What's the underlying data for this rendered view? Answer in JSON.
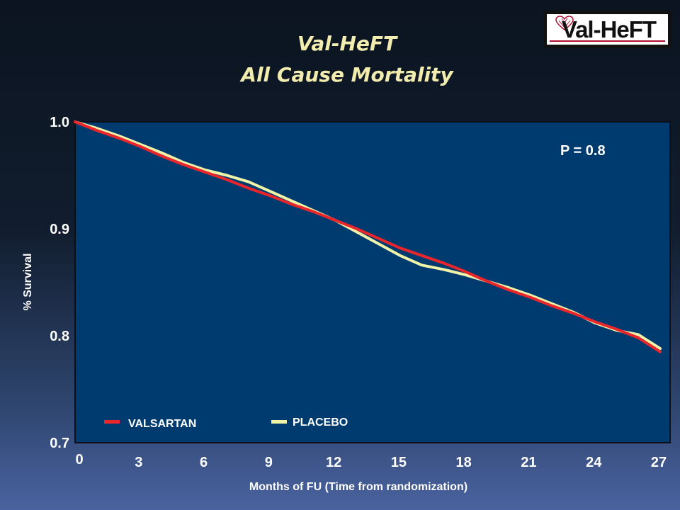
{
  "slide": {
    "title_line1": "Val-HeFT",
    "title_line2": "All Cause Mortality",
    "logo_text": "Val-HeFT"
  },
  "colors": {
    "plot_background": "#003b6f",
    "valsartan": "#e8262b",
    "placebo": "#f0f2a8",
    "title": "#f2ecae"
  },
  "chart_data": {
    "type": "line",
    "title": "All Cause Mortality",
    "xlabel": "Months of FU (Time from randomization)",
    "ylabel": "% Survival",
    "xlim": [
      0,
      27
    ],
    "ylim": [
      0.7,
      1.0
    ],
    "x_ticks": [
      "0",
      "3",
      "6",
      "9",
      "12",
      "15",
      "18",
      "21",
      "24",
      "27"
    ],
    "y_ticks": [
      "1.0",
      "0.9",
      "0.8",
      "0.7"
    ],
    "annotation": "P = 0.8",
    "legend_position": "bottom-left",
    "grid": false,
    "series": [
      {
        "name": "VALSARTAN",
        "color": "#e8262b",
        "x": [
          0,
          1,
          2,
          3,
          4,
          5,
          6,
          7,
          8,
          9,
          10,
          11,
          12,
          13,
          14,
          15,
          16,
          17,
          18,
          19,
          20,
          21,
          22,
          23,
          24,
          25,
          26,
          27
        ],
        "y": [
          1.0,
          0.992,
          0.985,
          0.977,
          0.968,
          0.96,
          0.953,
          0.946,
          0.938,
          0.931,
          0.923,
          0.916,
          0.908,
          0.9,
          0.891,
          0.882,
          0.875,
          0.868,
          0.86,
          0.851,
          0.843,
          0.836,
          0.828,
          0.821,
          0.813,
          0.806,
          0.798,
          0.785
        ]
      },
      {
        "name": "PLACEBO",
        "color": "#f0f2a8",
        "x": [
          0,
          1,
          2,
          3,
          4,
          5,
          6,
          7,
          8,
          9,
          10,
          11,
          12,
          13,
          14,
          15,
          16,
          17,
          18,
          19,
          20,
          21,
          22,
          23,
          24,
          25,
          26,
          27
        ],
        "y": [
          1.0,
          0.994,
          0.987,
          0.979,
          0.971,
          0.962,
          0.955,
          0.95,
          0.944,
          0.935,
          0.926,
          0.917,
          0.908,
          0.897,
          0.886,
          0.875,
          0.866,
          0.862,
          0.857,
          0.851,
          0.845,
          0.838,
          0.83,
          0.822,
          0.812,
          0.805,
          0.801,
          0.788
        ]
      }
    ]
  }
}
